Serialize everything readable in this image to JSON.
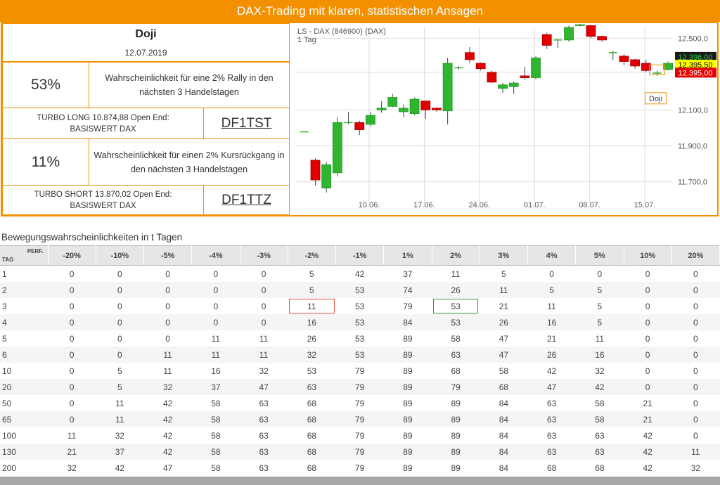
{
  "header": {
    "title": "DAX-Trading mit klaren, statistischen Ansagen"
  },
  "pattern": {
    "name": "Doji",
    "date": "12.07.2019"
  },
  "signals": [
    {
      "percent": "53%",
      "text": "Wahrscheinlichkeit für eine 2% Rally in den nächsten 3 Handelstagen",
      "product_line1": "TURBO LONG 10.874,88 Open End:",
      "product_line2": "BASISWERT DAX",
      "wkn": "DF1TST",
      "accent": "#2e9b2e"
    },
    {
      "percent": "11%",
      "text": "Wahrscheinlichkeit für einen 2% Kursrückgang in den nächsten 3 Handelstagen",
      "product_line1": "TURBO SHORT 13.870,02 Open End:",
      "product_line2": "BASISWERT DAX",
      "wkn": "DF1TTZ",
      "accent": "#e74c3c"
    }
  ],
  "chart_data": {
    "type": "candlestick",
    "title": "LS - DAX (846900) (DAX)",
    "subtitle": "1 Tag",
    "ylim": [
      11620,
      12560
    ],
    "y_ticks": [
      "12.500,0",
      "12.100,0",
      "11.900,0",
      "11.700,0"
    ],
    "x_ticks": [
      "10.06.",
      "17.06.",
      "24.06.",
      "01.07.",
      "08.07.",
      "15.07."
    ],
    "price_labels": [
      {
        "text": "12.396,00",
        "value": 12396,
        "bg": "#1a1a1a",
        "fg": "#2ecc40"
      },
      {
        "text": "12.395,50",
        "value": 12352,
        "bg": "#ffff00",
        "fg": "#000000"
      },
      {
        "text": "12.395,00",
        "value": 12308,
        "bg": "#e60000",
        "fg": "#ffffff"
      }
    ],
    "annotation": "Doji",
    "candles": [
      {
        "o": 11978,
        "h": 11978,
        "l": 11978,
        "c": 11978
      },
      {
        "o": 11820,
        "h": 11830,
        "l": 11680,
        "c": 11710
      },
      {
        "o": 11665,
        "h": 11810,
        "l": 11640,
        "c": 11795
      },
      {
        "o": 11750,
        "h": 12060,
        "l": 11730,
        "c": 12030
      },
      {
        "o": 12030,
        "h": 12090,
        "l": 12020,
        "c": 12030
      },
      {
        "o": 12030,
        "h": 12040,
        "l": 11960,
        "c": 11990
      },
      {
        "o": 12020,
        "h": 12090,
        "l": 12010,
        "c": 12070
      },
      {
        "o": 12100,
        "h": 12150,
        "l": 12085,
        "c": 12110
      },
      {
        "o": 12120,
        "h": 12190,
        "l": 12115,
        "c": 12170
      },
      {
        "o": 12090,
        "h": 12130,
        "l": 12060,
        "c": 12110
      },
      {
        "o": 12080,
        "h": 12170,
        "l": 12070,
        "c": 12160
      },
      {
        "o": 12150,
        "h": 12150,
        "l": 12050,
        "c": 12100
      },
      {
        "o": 12110,
        "h": 12115,
        "l": 12090,
        "c": 12100
      },
      {
        "o": 12095,
        "h": 12390,
        "l": 12020,
        "c": 12360
      },
      {
        "o": 12335,
        "h": 12345,
        "l": 12325,
        "c": 12335
      },
      {
        "o": 12420,
        "h": 12450,
        "l": 12360,
        "c": 12380
      },
      {
        "o": 12360,
        "h": 12365,
        "l": 12320,
        "c": 12330
      },
      {
        "o": 12310,
        "h": 12320,
        "l": 12250,
        "c": 12255
      },
      {
        "o": 12220,
        "h": 12250,
        "l": 12195,
        "c": 12240
      },
      {
        "o": 12230,
        "h": 12260,
        "l": 12190,
        "c": 12250
      },
      {
        "o": 12290,
        "h": 12340,
        "l": 12270,
        "c": 12280
      },
      {
        "o": 12280,
        "h": 12400,
        "l": 12270,
        "c": 12390
      },
      {
        "o": 12520,
        "h": 12530,
        "l": 12440,
        "c": 12460
      },
      {
        "o": 12490,
        "h": 12495,
        "l": 12445,
        "c": 12490
      },
      {
        "o": 12490,
        "h": 12570,
        "l": 12480,
        "c": 12560
      },
      {
        "o": 12570,
        "h": 12580,
        "l": 12565,
        "c": 12575
      },
      {
        "o": 12570,
        "h": 12575,
        "l": 12500,
        "c": 12510
      },
      {
        "o": 12510,
        "h": 12515,
        "l": 12480,
        "c": 12490
      },
      {
        "o": 12420,
        "h": 12430,
        "l": 12380,
        "c": 12420
      },
      {
        "o": 12400,
        "h": 12410,
        "l": 12350,
        "c": 12370
      },
      {
        "o": 12380,
        "h": 12385,
        "l": 12330,
        "c": 12345
      },
      {
        "o": 12360,
        "h": 12380,
        "l": 12310,
        "c": 12320
      },
      {
        "o": 12305,
        "h": 12320,
        "l": 12290,
        "c": 12305
      },
      {
        "o": 12325,
        "h": 12370,
        "l": 12320,
        "c": 12360
      }
    ]
  },
  "table": {
    "title": "Bewegungswahrscheinlichkeiten in t Tagen",
    "corner_perf": "PERF.",
    "corner_tag": "TAG",
    "columns": [
      "-20%",
      "-10%",
      "-5%",
      "-4%",
      "-3%",
      "-2%",
      "-1%",
      "1%",
      "2%",
      "3%",
      "4%",
      "5%",
      "10%",
      "20%"
    ],
    "rows": [
      {
        "tag": "1",
        "values": [
          "0",
          "0",
          "0",
          "0",
          "0",
          "5",
          "42",
          "37",
          "11",
          "5",
          "0",
          "0",
          "0",
          "0"
        ]
      },
      {
        "tag": "2",
        "values": [
          "0",
          "0",
          "0",
          "0",
          "0",
          "5",
          "53",
          "74",
          "26",
          "11",
          "5",
          "5",
          "0",
          "0"
        ]
      },
      {
        "tag": "3",
        "values": [
          "0",
          "0",
          "0",
          "0",
          "0",
          "11",
          "53",
          "79",
          "53",
          "21",
          "11",
          "5",
          "0",
          "0"
        ]
      },
      {
        "tag": "4",
        "values": [
          "0",
          "0",
          "0",
          "0",
          "0",
          "16",
          "53",
          "84",
          "53",
          "26",
          "16",
          "5",
          "0",
          "0"
        ]
      },
      {
        "tag": "5",
        "values": [
          "0",
          "0",
          "0",
          "11",
          "11",
          "26",
          "53",
          "89",
          "58",
          "47",
          "21",
          "11",
          "0",
          "0"
        ]
      },
      {
        "tag": "6",
        "values": [
          "0",
          "0",
          "11",
          "11",
          "11",
          "32",
          "53",
          "89",
          "63",
          "47",
          "26",
          "16",
          "0",
          "0"
        ]
      },
      {
        "tag": "10",
        "values": [
          "0",
          "5",
          "11",
          "16",
          "32",
          "53",
          "79",
          "89",
          "68",
          "58",
          "42",
          "32",
          "0",
          "0"
        ]
      },
      {
        "tag": "20",
        "values": [
          "0",
          "5",
          "32",
          "37",
          "47",
          "63",
          "79",
          "89",
          "79",
          "68",
          "47",
          "42",
          "0",
          "0"
        ]
      },
      {
        "tag": "50",
        "values": [
          "0",
          "11",
          "42",
          "58",
          "63",
          "68",
          "79",
          "89",
          "89",
          "84",
          "63",
          "58",
          "21",
          "0"
        ]
      },
      {
        "tag": "65",
        "values": [
          "0",
          "11",
          "42",
          "58",
          "63",
          "68",
          "79",
          "89",
          "89",
          "84",
          "63",
          "58",
          "21",
          "0"
        ]
      },
      {
        "tag": "100",
        "values": [
          "11",
          "32",
          "42",
          "58",
          "63",
          "68",
          "79",
          "89",
          "89",
          "84",
          "63",
          "63",
          "42",
          "0"
        ]
      },
      {
        "tag": "130",
        "values": [
          "21",
          "37",
          "42",
          "58",
          "63",
          "68",
          "79",
          "89",
          "89",
          "84",
          "63",
          "63",
          "42",
          "11"
        ]
      },
      {
        "tag": "200",
        "values": [
          "32",
          "42",
          "47",
          "58",
          "63",
          "68",
          "79",
          "89",
          "89",
          "84",
          "68",
          "68",
          "42",
          "32"
        ]
      }
    ],
    "highlights": [
      {
        "row": 2,
        "col": 5,
        "color": "red"
      },
      {
        "row": 2,
        "col": 8,
        "color": "green"
      }
    ]
  }
}
